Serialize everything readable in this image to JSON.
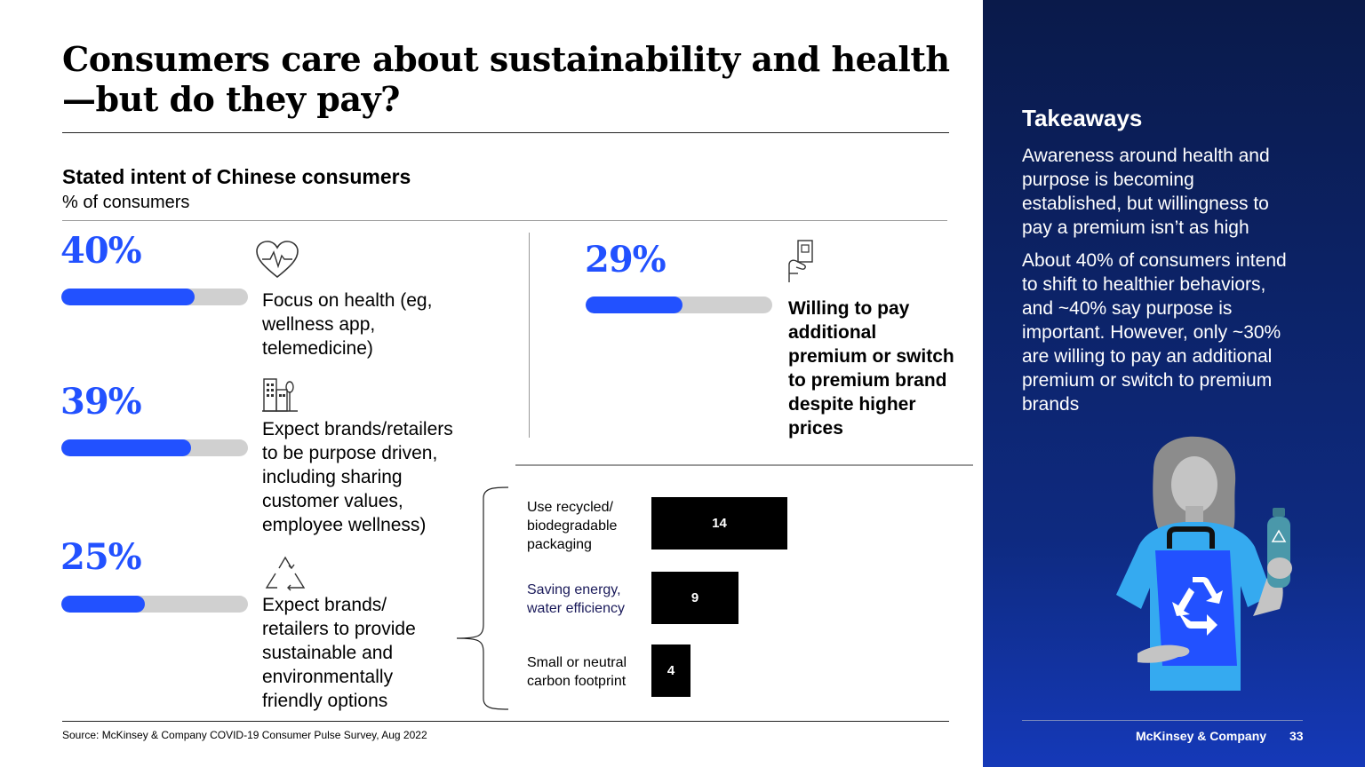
{
  "title": "Consumers care about sustainability and health—but do they pay?",
  "subtitle": "Stated intent of Chinese consumers",
  "unit": "% of consumers",
  "metrics": [
    {
      "value": "40%",
      "fraction": 0.4,
      "description_lines": [
        "Focus on health (eg,",
        "wellness app,",
        "telemedicine)"
      ],
      "icon": "heart-rate-icon"
    },
    {
      "value": "39%",
      "fraction": 0.39,
      "description_lines": [
        "Expect brands/retailers",
        "to be purpose driven,",
        "including sharing",
        "customer values,",
        "employee wellness)"
      ],
      "icon": "buildings-icon"
    },
    {
      "value": "25%",
      "fraction": 0.25,
      "description_lines": [
        "Expect brands/",
        "retailers to provide",
        "sustainable and",
        "environmentally",
        "friendly options"
      ],
      "icon": "recycle-icon"
    }
  ],
  "willing": {
    "value": "29%",
    "fraction": 0.29,
    "description_lines": [
      "Willing to pay",
      "additional",
      "premium or switch",
      "to premium brand",
      "despite higher",
      "prices"
    ],
    "icon": "hand-card-icon"
  },
  "chart_data": {
    "type": "bar",
    "orientation": "horizontal",
    "categories": [
      "Use recycled/ biodegradable packaging",
      "Saving energy, water efficiency",
      "Small or neutral carbon footprint"
    ],
    "category_lines": [
      [
        "Use recycled/",
        "biodegradable",
        "packaging"
      ],
      [
        "Saving energy,",
        "water efficiency"
      ],
      [
        "Small or neutral",
        "carbon footprint"
      ]
    ],
    "values": [
      14,
      9,
      4
    ],
    "labels": [
      "14",
      "9",
      "4"
    ],
    "xlim": [
      0,
      14
    ],
    "colors": {
      "bar": "#000000",
      "label": "#ffffff"
    }
  },
  "source": "Source: McKinsey & Company COVID-19 Consumer Pulse Survey, Aug 2022",
  "takeaways": {
    "title": "Takeaways",
    "para1_lines": [
      "Awareness around health and",
      "purpose is becoming",
      "established, but willingness to",
      "pay a premium isn’t as high"
    ],
    "para2_lines": [
      "About 40% of consumers intend",
      "to shift to healthier behaviors,",
      "and ~40% say purpose is",
      "important. However, only ~30%",
      "are willing to pay an additional",
      "premium or switch to premium",
      "brands"
    ]
  },
  "footer": {
    "brand": "McKinsey & Company",
    "page": "33"
  },
  "colors": {
    "accent": "#2251ff",
    "track": "#d0d0d0",
    "panel": "#0e2a80"
  }
}
